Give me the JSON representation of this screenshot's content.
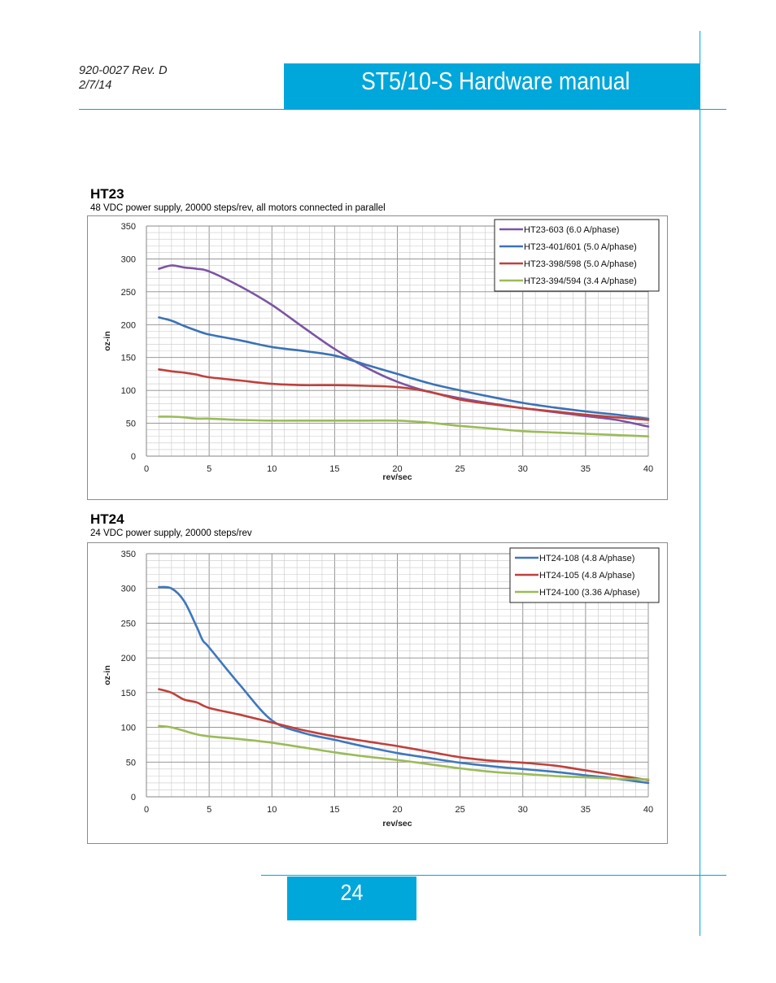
{
  "header": {
    "doc_number": "920-0027 Rev. D",
    "date": "2/7/14",
    "title": "ST5/10-S Hardware manual"
  },
  "page_number": "24",
  "chart_data": [
    {
      "type": "line",
      "title": "HT23",
      "subtitle": "48 VDC power supply, 20000 steps/rev, all motors connected in parallel",
      "xlabel": "rev/sec",
      "ylabel": "oz-in",
      "xlim": [
        0,
        40
      ],
      "ylim": [
        0,
        350
      ],
      "xticks": [
        "0",
        "5",
        "10",
        "15",
        "20",
        "25",
        "30",
        "35",
        "40"
      ],
      "yticks": [
        "0",
        "50",
        "100",
        "150",
        "200",
        "250",
        "300",
        "350"
      ],
      "grid": true,
      "legend_position": "top-right",
      "series": [
        {
          "name": "HT23-603 (6.0 A/phase)",
          "color": "#7b55a3",
          "x": [
            1,
            2,
            3,
            4,
            5,
            7.5,
            10,
            12.5,
            15,
            17.5,
            20,
            22.5,
            25,
            27.5,
            30,
            32.5,
            35,
            37.5,
            40
          ],
          "values": [
            285,
            290,
            287,
            285,
            281,
            258,
            230,
            196,
            163,
            135,
            113,
            98,
            88,
            80,
            73,
            67,
            61,
            55,
            45
          ]
        },
        {
          "name": "HT23-401/601 (5.0 A/phase)",
          "color": "#3a72b8",
          "x": [
            1,
            2,
            3,
            4,
            5,
            7.5,
            10,
            12.5,
            15,
            17.5,
            20,
            22.5,
            25,
            27.5,
            30,
            32.5,
            35,
            37.5,
            40
          ],
          "values": [
            211,
            206,
            198,
            191,
            185,
            176,
            166,
            160,
            153,
            139,
            125,
            111,
            100,
            90,
            81,
            74,
            68,
            63,
            57
          ]
        },
        {
          "name": "HT23-398/598 (5.0 A/phase)",
          "color": "#c0403c",
          "x": [
            1,
            2,
            3,
            4,
            5,
            7.5,
            10,
            12.5,
            15,
            17.5,
            20,
            22.5,
            25,
            27.5,
            30,
            32.5,
            35,
            37.5,
            40
          ],
          "values": [
            132,
            129,
            127,
            124,
            120,
            115,
            110,
            108,
            108,
            107,
            105,
            98,
            86,
            79,
            73,
            68,
            63,
            59,
            55
          ]
        },
        {
          "name": "HT23-394/594 (3.4 A/phase)",
          "color": "#9bbb59",
          "x": [
            1,
            2,
            3,
            4,
            5,
            7.5,
            10,
            12.5,
            15,
            17.5,
            20,
            22.5,
            25,
            27.5,
            30,
            32.5,
            35,
            37.5,
            40
          ],
          "values": [
            60,
            60,
            59,
            57,
            57,
            55,
            54,
            54,
            54,
            54,
            54,
            51,
            46,
            42,
            38,
            36,
            34,
            32,
            30
          ]
        }
      ]
    },
    {
      "type": "line",
      "title": "HT24",
      "subtitle": "24 VDC power supply, 20000 steps/rev",
      "xlabel": "rev/sec",
      "ylabel": "oz-in",
      "xlim": [
        0,
        40
      ],
      "ylim": [
        0,
        350
      ],
      "xticks": [
        "0",
        "5",
        "10",
        "15",
        "20",
        "25",
        "30",
        "35",
        "40"
      ],
      "yticks": [
        "0",
        "50",
        "100",
        "150",
        "200",
        "250",
        "300",
        "350"
      ],
      "grid": true,
      "legend_position": "top-right",
      "series": [
        {
          "name": "HT24-108 (4.8 A/phase)",
          "color": "#3f77bd",
          "x": [
            1,
            2,
            3,
            4,
            4.5,
            5,
            7.5,
            10,
            12.5,
            15,
            17.5,
            20,
            22.5,
            25,
            27.5,
            30,
            32.5,
            35,
            37.5,
            40
          ],
          "values": [
            302,
            300,
            282,
            245,
            225,
            215,
            160,
            110,
            92,
            82,
            72,
            63,
            56,
            49,
            44,
            40,
            36,
            31,
            26,
            20
          ]
        },
        {
          "name": "HT24-105 (4.8 A/phase)",
          "color": "#c0403c",
          "x": [
            1,
            2,
            3,
            4,
            5,
            7.5,
            10,
            12.5,
            15,
            17.5,
            20,
            22.5,
            25,
            27.5,
            30,
            32.5,
            35,
            37.5,
            40
          ],
          "values": [
            155,
            150,
            140,
            136,
            128,
            118,
            107,
            96,
            87,
            80,
            73,
            65,
            57,
            52,
            49,
            45,
            38,
            31,
            24
          ]
        },
        {
          "name": "HT24-100 (3.36 A/phase)",
          "color": "#9bbb59",
          "x": [
            1,
            2,
            3,
            4,
            5,
            7.5,
            10,
            12.5,
            15,
            17.5,
            20,
            22.5,
            25,
            27.5,
            30,
            32.5,
            35,
            37.5,
            40
          ],
          "values": [
            102,
            100,
            95,
            90,
            87,
            83,
            78,
            71,
            64,
            58,
            53,
            47,
            41,
            36,
            33,
            30,
            28,
            26,
            25
          ]
        }
      ]
    }
  ]
}
